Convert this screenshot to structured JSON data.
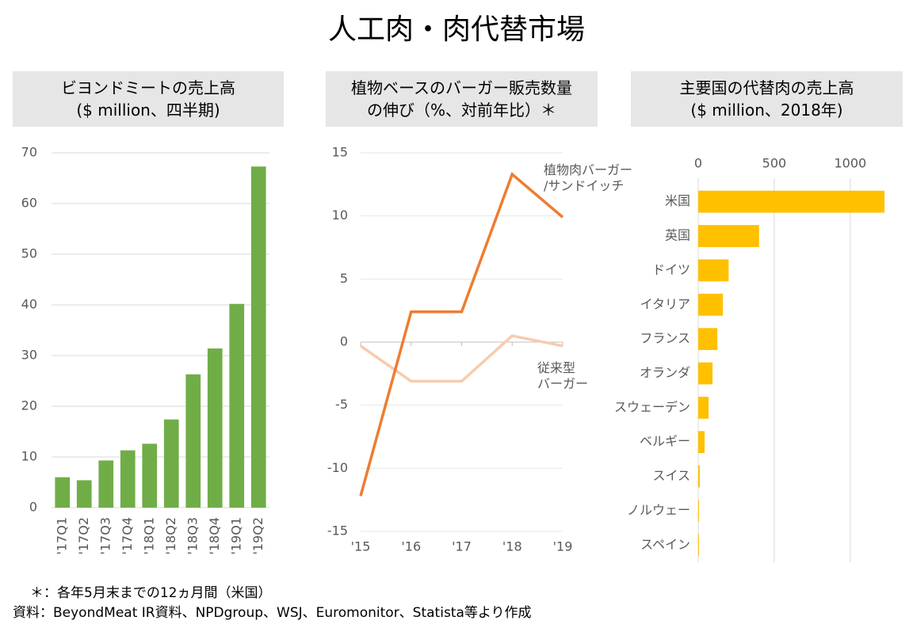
{
  "title": "人工肉・肉代替市場",
  "notes": [
    "＊：各年5月末までの12ヵ月間（米国）",
    "資料：BeyondMeat IR資料、NPDgroup、WSJ、Euromonitor、Statista等より作成"
  ],
  "chart_data": [
    {
      "type": "bar",
      "orientation": "vertical",
      "title": "ビヨンドミートの売上高\n($ million、四半期)",
      "categories": [
        "'17Q1",
        "'17Q2",
        "'17Q3",
        "'17Q4",
        "'18Q1",
        "'18Q2",
        "'18Q3",
        "'18Q4",
        "'19Q1",
        "'19Q2"
      ],
      "values": [
        6.0,
        5.4,
        9.3,
        11.3,
        12.6,
        17.4,
        26.3,
        31.4,
        40.2,
        67.3
      ],
      "color": "#70ad47",
      "ylim": [
        0,
        70
      ],
      "yticks": [
        0,
        10,
        20,
        30,
        40,
        50,
        60,
        70
      ],
      "grid": true
    },
    {
      "type": "line",
      "title": "植物ベースのバーガー販売数量\nの伸び（%、対前年比）＊",
      "categories": [
        "'15",
        "'16",
        "'17",
        "'18",
        "'19"
      ],
      "series": [
        {
          "name": "植物肉バーガー\n/サンドイッチ",
          "color": "#ed7d31",
          "values": [
            -12.2,
            2.4,
            2.4,
            13.3,
            9.9
          ]
        },
        {
          "name": "従来型\nバーガー",
          "color": "#f8cbad",
          "values": [
            -0.3,
            -3.1,
            -3.1,
            0.5,
            -0.3
          ]
        }
      ],
      "ylim": [
        -15,
        15
      ],
      "yticks": [
        -15,
        -10,
        -5,
        0,
        5,
        10,
        15
      ],
      "grid": true
    },
    {
      "type": "bar",
      "orientation": "horizontal",
      "title": "主要国の代替肉の売上高\n($ million、2018年)",
      "categories": [
        "米国",
        "英国",
        "ドイツ",
        "イタリア",
        "フランス",
        "オランダ",
        "スウェーデン",
        "ベルギー",
        "スイス",
        "ノルウェー",
        "スペイン"
      ],
      "values": [
        1225,
        400,
        200,
        162,
        126,
        94,
        68,
        42,
        10,
        5,
        5
      ],
      "color": "#ffc000",
      "xlim": [
        0,
        1350
      ],
      "xticks": [
        0,
        500,
        1000
      ],
      "grid": true
    }
  ]
}
